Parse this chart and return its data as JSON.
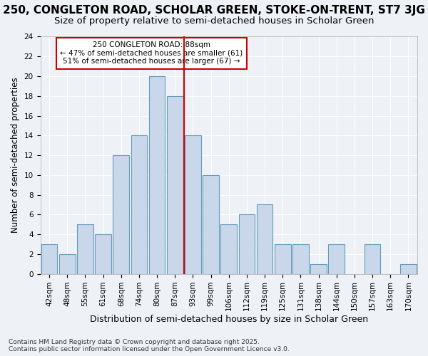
{
  "title_line1": "250, CONGLETON ROAD, SCHOLAR GREEN, STOKE-ON-TRENT, ST7 3JG",
  "title_line2": "Size of property relative to semi-detached houses in Scholar Green",
  "xlabel": "Distribution of semi-detached houses by size in Scholar Green",
  "ylabel": "Number of semi-detached properties",
  "annotation_title": "250 CONGLETON ROAD: 88sqm",
  "annotation_line2": "← 47% of semi-detached houses are smaller (61)",
  "annotation_line3": "51% of semi-detached houses are larger (67) →",
  "footer_line1": "Contains HM Land Registry data © Crown copyright and database right 2025.",
  "footer_line2": "Contains public sector information licensed under the Open Government Licence v3.0.",
  "categories": [
    "42sqm",
    "48sqm",
    "55sqm",
    "61sqm",
    "68sqm",
    "74sqm",
    "80sqm",
    "87sqm",
    "93sqm",
    "99sqm",
    "106sqm",
    "112sqm",
    "119sqm",
    "125sqm",
    "131sqm",
    "138sqm",
    "144sqm",
    "150sqm",
    "157sqm",
    "163sqm",
    "170sqm"
  ],
  "values": [
    3,
    2,
    5,
    4,
    12,
    14,
    20,
    18,
    14,
    10,
    5,
    6,
    7,
    3,
    3,
    1,
    3,
    0,
    3,
    0,
    1
  ],
  "bar_color": "#c8d8ea",
  "bar_edge_color": "#6699bb",
  "vline_x": 7.5,
  "ylim": [
    0,
    24
  ],
  "yticks": [
    0,
    2,
    4,
    6,
    8,
    10,
    12,
    14,
    16,
    18,
    20,
    22,
    24
  ],
  "background_color": "#eef2f7",
  "grid_color": "#ffffff",
  "annotation_box_color": "#ffffff",
  "annotation_box_edge_color": "#cc0000",
  "vline_color": "#cc0000",
  "title_fontsize": 11,
  "subtitle_fontsize": 9.5,
  "tick_fontsize": 7.5,
  "ylabel_fontsize": 8.5,
  "xlabel_fontsize": 9
}
